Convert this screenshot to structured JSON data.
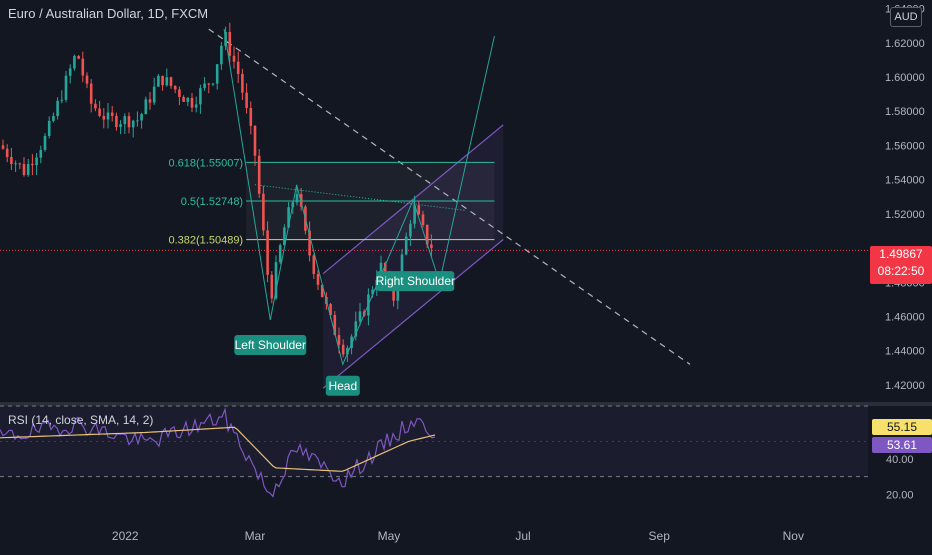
{
  "header": {
    "symbol_title": "Euro / Australian Dollar, 1D, FXCM",
    "currency_badge": "AUD"
  },
  "colors": {
    "background": "#131722",
    "up": "#26a69a",
    "down": "#ef5350",
    "fib_line": "#2bbd9e",
    "fib_0382": "#c8d66e",
    "channel": "#7e57c2",
    "projection": "#26a69a",
    "pattern_label": "#1a8f7f",
    "rsi_line": "#7e57c2",
    "rsi_ma": "#e8c17a",
    "current_price": "#f23645"
  },
  "price_pane": {
    "current_price": 1.49867,
    "countdown": "08:22:50",
    "fib_levels": [
      {
        "label": "0.618(1.55007)",
        "value": 1.55007
      },
      {
        "label": "0.5(1.52748)",
        "value": 1.52748
      },
      {
        "label": "0.382(1.50489)",
        "value": 1.50489
      }
    ],
    "pattern_labels": [
      "Left Shoulder",
      "Head",
      "Right Shoulder"
    ]
  },
  "rsi_pane": {
    "title": "RSI (14, close, SMA, 14, 2)",
    "rsi_value": "55.15",
    "ma_value": "53.61",
    "levels": [
      "40.00",
      "20.00"
    ]
  },
  "chart_data": {
    "type": "candlestick",
    "title": "Euro / Australian Dollar, 1D, FXCM",
    "y_axis_ticks": [
      "1.64000",
      "1.62000",
      "1.60000",
      "1.58000",
      "1.56000",
      "1.54000",
      "1.52000",
      "1.48000",
      "1.46000",
      "1.44000",
      "1.42000"
    ],
    "ylim": [
      1.41,
      1.645
    ],
    "x_axis_ticks": [
      "2022",
      "Mar",
      "May",
      "Jul",
      "Sep",
      "Nov"
    ],
    "x_axis_tick_dates": [
      "2022-01-01",
      "2022-03-01",
      "2022-05-01",
      "2022-07-01",
      "2022-09-01",
      "2022-11-01"
    ],
    "xlim": [
      "2021-11-05",
      "2022-12-05"
    ],
    "key_price_path": [
      {
        "date": "2021-11-05",
        "price": 1.56
      },
      {
        "date": "2021-11-16",
        "price": 1.545
      },
      {
        "date": "2021-11-26",
        "price": 1.565
      },
      {
        "date": "2021-12-10",
        "price": 1.615
      },
      {
        "date": "2021-12-16",
        "price": 1.585
      },
      {
        "date": "2021-12-24",
        "price": 1.575
      },
      {
        "date": "2022-01-07",
        "price": 1.575
      },
      {
        "date": "2022-01-17",
        "price": 1.6
      },
      {
        "date": "2022-01-31",
        "price": 1.585
      },
      {
        "date": "2022-02-10",
        "price": 1.6
      },
      {
        "date": "2022-02-15",
        "price": 1.625
      },
      {
        "date": "2022-02-22",
        "price": 1.6
      },
      {
        "date": "2022-03-01",
        "price": 1.555
      },
      {
        "date": "2022-03-08",
        "price": 1.47
      },
      {
        "date": "2022-03-14",
        "price": 1.51
      },
      {
        "date": "2022-03-20",
        "price": 1.535
      },
      {
        "date": "2022-03-25",
        "price": 1.5
      },
      {
        "date": "2022-04-05",
        "price": 1.455
      },
      {
        "date": "2022-04-11",
        "price": 1.44
      },
      {
        "date": "2022-04-20",
        "price": 1.465
      },
      {
        "date": "2022-04-27",
        "price": 1.49
      },
      {
        "date": "2022-05-03",
        "price": 1.47
      },
      {
        "date": "2022-05-12",
        "price": 1.525
      },
      {
        "date": "2022-05-18",
        "price": 1.505
      },
      {
        "date": "2022-05-22",
        "price": 1.4987
      }
    ],
    "rsi": {
      "ylim": [
        10,
        70
      ],
      "levels": [
        70,
        30
      ],
      "key_points": [
        {
          "date": "2021-11-05",
          "value": 52
        },
        {
          "date": "2021-12-10",
          "value": 60
        },
        {
          "date": "2022-01-10",
          "value": 49
        },
        {
          "date": "2022-02-15",
          "value": 64
        },
        {
          "date": "2022-03-08",
          "value": 20
        },
        {
          "date": "2022-03-20",
          "value": 46
        },
        {
          "date": "2022-04-10",
          "value": 28
        },
        {
          "date": "2022-05-12",
          "value": 62
        },
        {
          "date": "2022-05-22",
          "value": 55.15
        }
      ],
      "ma_key_points": [
        {
          "date": "2021-11-05",
          "value": 52
        },
        {
          "date": "2022-01-10",
          "value": 55
        },
        {
          "date": "2022-02-20",
          "value": 58
        },
        {
          "date": "2022-03-10",
          "value": 35
        },
        {
          "date": "2022-04-10",
          "value": 33
        },
        {
          "date": "2022-05-10",
          "value": 50
        },
        {
          "date": "2022-05-22",
          "value": 53.61
        }
      ]
    }
  }
}
